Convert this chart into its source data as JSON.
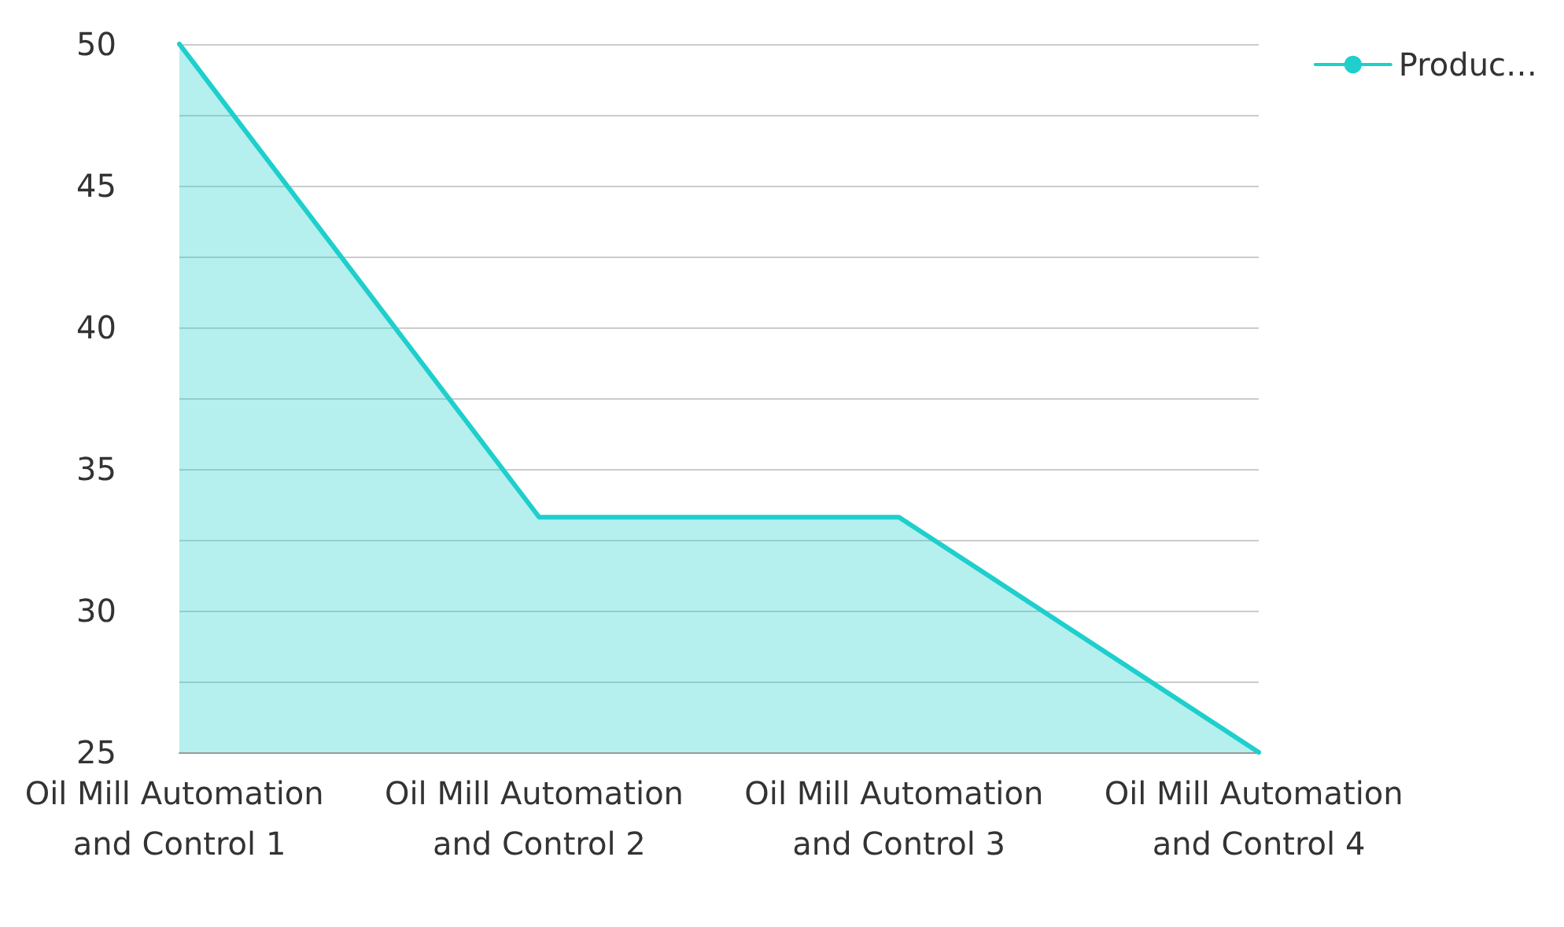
{
  "chart_data": {
    "type": "area",
    "categories": [
      "Oil Mill Automation and Control 1",
      "Oil Mill Automation and Control 2",
      "Oil Mill Automation and Control 3",
      "Oil Mill Automation and Control 4"
    ],
    "series": [
      {
        "name": "Produc…",
        "color": "#1ecfcc",
        "values": [
          50,
          33.3,
          33.3,
          25
        ]
      }
    ],
    "ylim": [
      25,
      50
    ],
    "yticks": [
      25,
      {
        "value": 27.5,
        "label": null
      },
      30,
      {
        "value": 32.5,
        "label": null
      },
      35,
      {
        "value": 37.5,
        "label": null
      },
      40,
      {
        "value": 42.5,
        "label": null
      },
      45,
      {
        "value": 47.5,
        "label": null
      },
      50
    ],
    "grid": "y",
    "legend": "top right",
    "marker": "none",
    "line_style": "solid"
  }
}
